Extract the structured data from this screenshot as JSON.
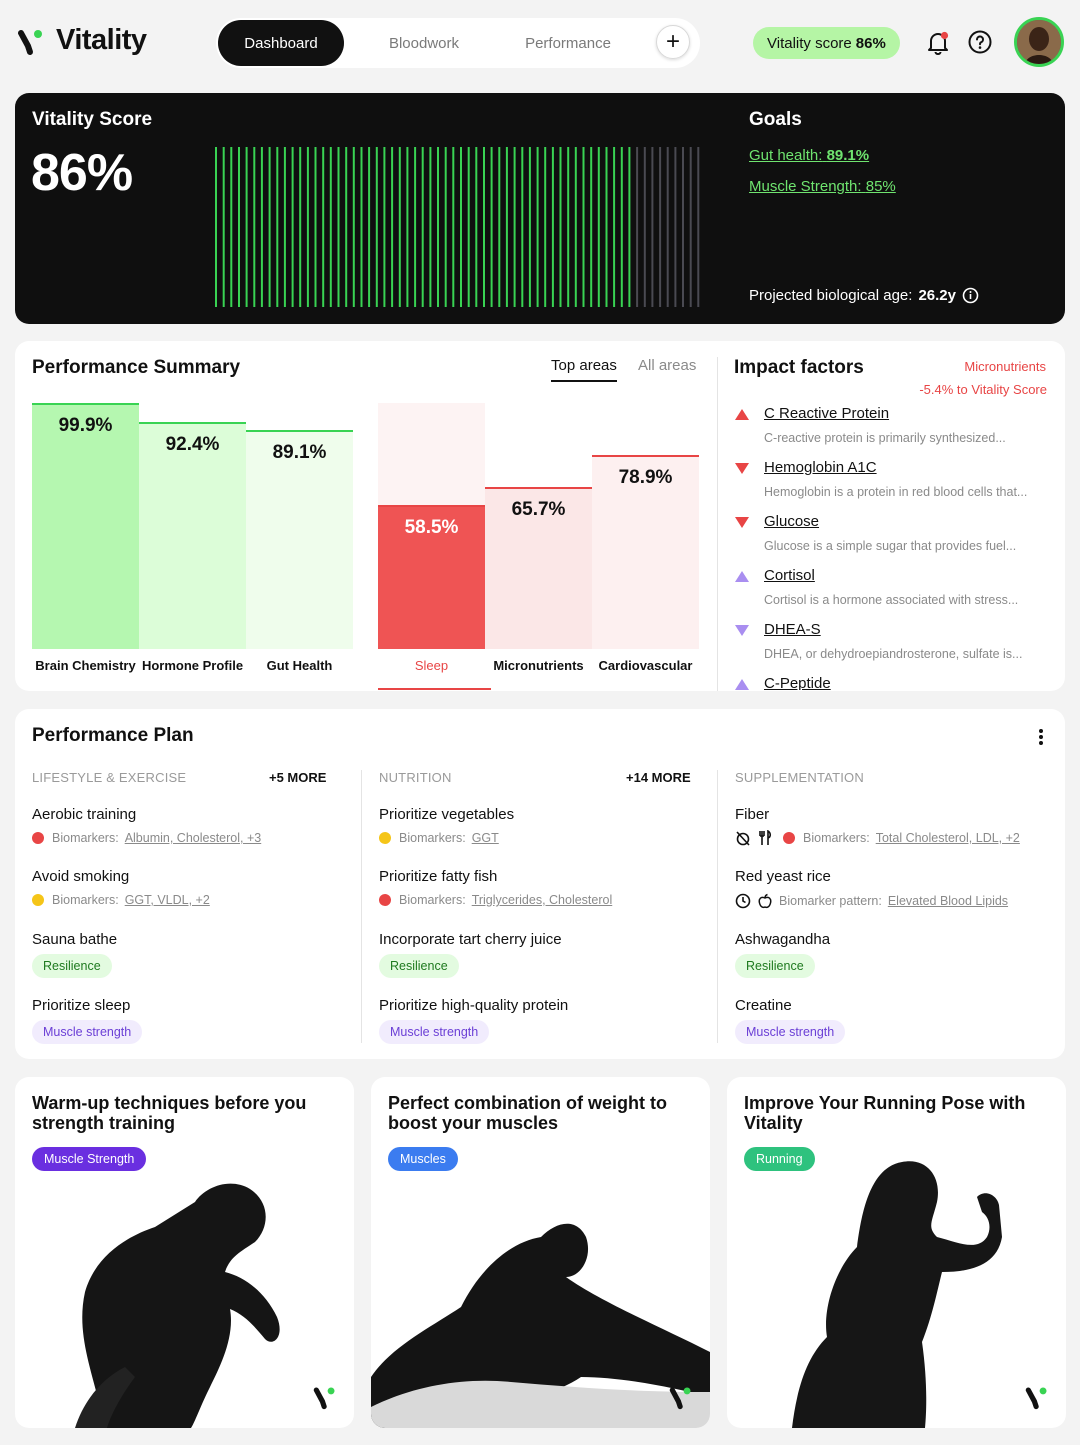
{
  "header": {
    "brand": "Vitality",
    "tabs": [
      {
        "label": "Dashboard"
      },
      {
        "label": "Bloodwork"
      },
      {
        "label": "Performance"
      }
    ],
    "score_label": "Vitality score",
    "score_value": "86%"
  },
  "hero": {
    "title": "Vitality Score",
    "value": "86%",
    "level": 0.86,
    "goals_title": "Goals",
    "goals": [
      {
        "label": "Gut health:",
        "value": "89.1%"
      },
      {
        "label": "Muscle Strength:",
        "value": "85%"
      }
    ],
    "projected_label": "Projected biological age:",
    "projected_value": "26.2y"
  },
  "summary": {
    "title": "Performance Summary",
    "tabs": [
      {
        "label": "Top areas"
      },
      {
        "label": "All areas"
      }
    ],
    "top": [
      {
        "name": "Brain Chemistry",
        "value": "99.9%",
        "level": 0.999
      },
      {
        "name": "Hormone Profile",
        "value": "92.4%",
        "level": 0.924
      },
      {
        "name": "Gut Health",
        "value": "89.1%",
        "level": 0.891
      }
    ],
    "bottom": [
      {
        "name": "Sleep",
        "value": "58.5%",
        "level": 0.585
      },
      {
        "name": "Micronutrients",
        "value": "65.7%",
        "level": 0.657
      },
      {
        "name": "Cardiovascular",
        "value": "78.9%",
        "level": 0.789
      }
    ]
  },
  "impact": {
    "title": "Impact factors",
    "category": "Micronutrients",
    "delta": "-5.4% to Vitality Score",
    "items": [
      {
        "name": "C Reactive Protein",
        "desc": "C-reactive protein is primarily synthesized...",
        "dir": "up",
        "color": "#e84545"
      },
      {
        "name": "Hemoglobin A1C",
        "desc": "Hemoglobin is a protein in red blood cells that...",
        "dir": "down",
        "color": "#e84545"
      },
      {
        "name": "Glucose",
        "desc": "Glucose is a simple sugar that provides fuel...",
        "dir": "down",
        "color": "#e84545"
      },
      {
        "name": "Cortisol",
        "desc": "Cortisol is a hormone associated with stress...",
        "dir": "up",
        "color": "#a98ef0"
      },
      {
        "name": "DHEA-S",
        "desc": "DHEA, or dehydroepiandrosterone, sulfate is...",
        "dir": "down",
        "color": "#a98ef0"
      },
      {
        "name": "C-Peptide",
        "desc": "",
        "dir": "up",
        "color": "#a98ef0"
      }
    ]
  },
  "plan": {
    "title": "Performance Plan",
    "lifestyle": {
      "head": "LIFESTYLE & EXERCISE",
      "more": "+5 MORE",
      "items": [
        {
          "name": "Aerobic training",
          "meta_label": "Biomarkers:",
          "meta_value": "Albumin, Cholesterol, +3",
          "dot": "#e84545"
        },
        {
          "name": "Avoid smoking",
          "meta_label": "Biomarkers:",
          "meta_value": "GGT, VLDL, +2",
          "dot": "#f5c518"
        },
        {
          "name": "Sauna bathe",
          "tag": "Resilience"
        },
        {
          "name": "Prioritize sleep",
          "tag": "Muscle strength"
        }
      ]
    },
    "nutrition": {
      "head": "NUTRITION",
      "more": "+14 MORE",
      "items": [
        {
          "name": "Prioritize vegetables",
          "meta_label": "Biomarkers:",
          "meta_value": "GGT",
          "dot": "#f5c518"
        },
        {
          "name": "Prioritize fatty fish",
          "meta_label": "Biomarkers:",
          "meta_value": "Triglycerides, Cholesterol",
          "dot": "#e84545"
        },
        {
          "name": "Incorporate tart cherry juice",
          "tag": "Resilience"
        },
        {
          "name": "Prioritize high-quality protein",
          "tag": "Muscle strength"
        }
      ]
    },
    "supplementation": {
      "head": "SUPPLEMENTATION",
      "items": [
        {
          "name": "Fiber",
          "meta_label": "Biomarkers:",
          "meta_value": "Total Cholesterol, LDL, +2",
          "dot": "#e84545"
        },
        {
          "name": "Red yeast rice",
          "meta_label": "Biomarker pattern:",
          "meta_value": "Elevated Blood Lipids"
        },
        {
          "name": "Ashwagandha",
          "tag": "Resilience"
        },
        {
          "name": "Creatine",
          "tag": "Muscle strength"
        }
      ]
    }
  },
  "articles": [
    {
      "title": "Warm-up techniques before you strength training",
      "tag": "Muscle Strength",
      "tag_color": "#6a2fe0"
    },
    {
      "title": "Perfect combination of weight to boost your muscles",
      "tag": "Muscles",
      "tag_color": "#3b7cf0"
    },
    {
      "title": "Improve Your Running Pose with Vitality",
      "tag": "Running",
      "tag_color": "#2ec27e"
    }
  ],
  "colors": {
    "accent_green": "#39d353",
    "alert_red": "#e84545",
    "purple": "#a98ef0"
  }
}
